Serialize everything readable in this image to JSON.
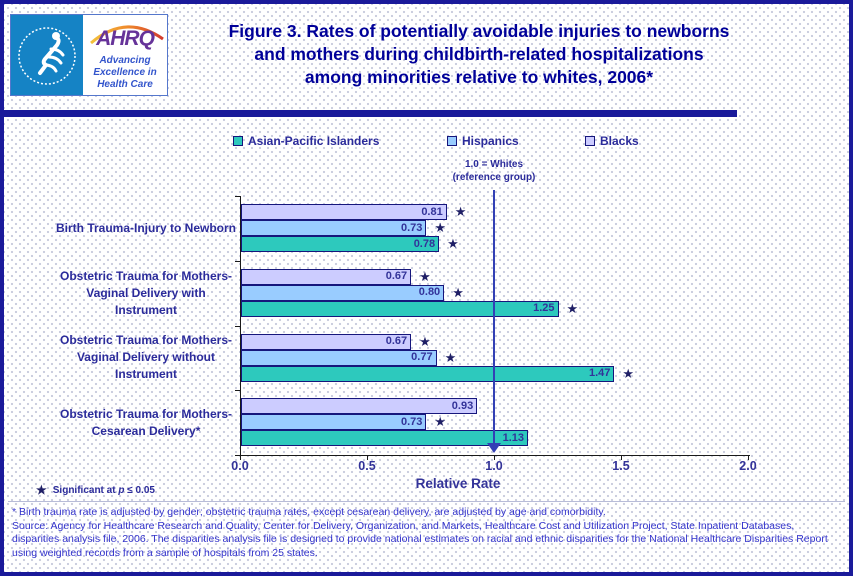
{
  "header": {
    "logo": {
      "wordmark": "AHRQ",
      "tagline_line1": "Advancing",
      "tagline_line2": "Excellence in",
      "tagline_line3": "Health Care"
    },
    "title_line1": "Figure 3. Rates of potentially avoidable injuries to newborns",
    "title_line2": "and mothers during childbirth-related hospitalizations",
    "title_line3": "among minorities relative to whites, 2006*"
  },
  "chart_data": {
    "type": "bar",
    "orientation": "horizontal",
    "title": "Rates of potentially avoidable injuries to newborns and mothers during childbirth-related hospitalizations among minorities relative to whites, 2006",
    "categories": [
      "Birth Trauma-Injury to Newborn",
      "Obstetric Trauma for Mothers-Vaginal Delivery with Instrument",
      "Obstetric Trauma for Mothers-Vaginal Delivery without Instrument",
      "Obstetric Trauma for Mothers-Cesarean Delivery*"
    ],
    "series": [
      {
        "name": "Asian-Pacific Islanders",
        "color": "#2dc9bd",
        "values": [
          0.78,
          1.25,
          1.47,
          1.13
        ],
        "significant": [
          true,
          true,
          true,
          false
        ]
      },
      {
        "name": "Hispanics",
        "color": "#99ccff",
        "values": [
          0.73,
          0.8,
          0.77,
          0.73
        ],
        "significant": [
          true,
          true,
          true,
          true
        ]
      },
      {
        "name": "Blacks",
        "color": "#ccccff",
        "values": [
          0.81,
          0.67,
          0.67,
          0.93
        ],
        "significant": [
          true,
          true,
          true,
          false
        ]
      }
    ],
    "bar_order_top_to_bottom": [
      "Blacks",
      "Hispanics",
      "Asian-Pacific Islanders"
    ],
    "xlabel": "Relative Rate",
    "xlim": [
      0.0,
      2.0
    ],
    "xticks": [
      "0.0",
      "0.5",
      "1.0",
      "1.5",
      "2.0"
    ],
    "grid": false,
    "legend_position": "top",
    "reference_line": {
      "value": 1.0,
      "label_line1": "1.0 = Whites",
      "label_line2": "(reference group)"
    }
  },
  "notes": {
    "sig_star": "★",
    "sig_prefix": "Significant at ",
    "sig_p": "p",
    "sig_suffix": " ≤ 0.05",
    "footnote": "* Birth trauma rate is adjusted by gender; obstetric trauma rates, except cesarean delivery, are adjusted by age and comorbidity.",
    "source": "Source: Agency for Healthcare Research and Quality, Center for Delivery, Organization, and Markets, Healthcare Cost and Utilization Project, State Inpatient Databases, disparities analysis file, 2006. The disparities analysis file is designed to provide national estimates on racial and ethnic disparities for the National Healthcare Disparities Report using weighted records from a sample of hospitals from 25 states."
  }
}
